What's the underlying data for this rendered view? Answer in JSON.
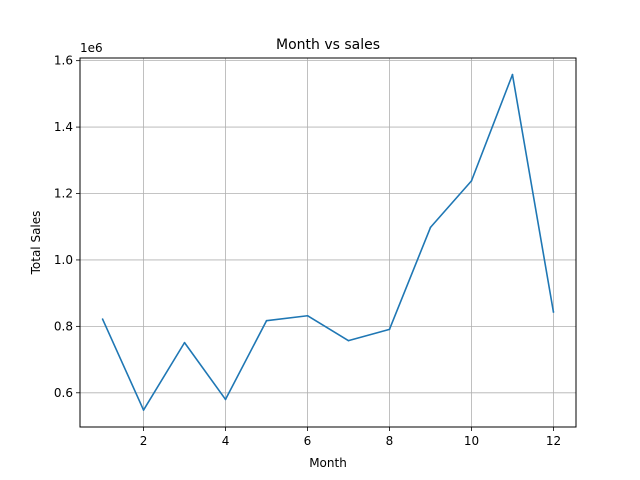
{
  "chart_data": {
    "type": "line",
    "title": "Month vs sales",
    "xlabel": "Month",
    "ylabel": "Total Sales",
    "y_offset_label": "1e6",
    "xlim": [
      0.45,
      12.55
    ],
    "ylim": [
      0.497,
      1.608
    ],
    "grid": true,
    "x_ticks": [
      {
        "value": 2,
        "label": "2"
      },
      {
        "value": 4,
        "label": "4"
      },
      {
        "value": 6,
        "label": "6"
      },
      {
        "value": 8,
        "label": "8"
      },
      {
        "value": 10,
        "label": "10"
      },
      {
        "value": 12,
        "label": "12"
      }
    ],
    "y_ticks": [
      {
        "value": 0.6,
        "label": "0.6"
      },
      {
        "value": 0.8,
        "label": "0.8"
      },
      {
        "value": 1.0,
        "label": "1.0"
      },
      {
        "value": 1.2,
        "label": "1.2"
      },
      {
        "value": 1.4,
        "label": "1.4"
      },
      {
        "value": 1.6,
        "label": "1.6"
      }
    ],
    "series": [
      {
        "color": "#1f77b4",
        "x": [
          1,
          2,
          3,
          4,
          5,
          6,
          7,
          8,
          9,
          10,
          11,
          12
        ],
        "y": [
          0.822,
          0.548,
          0.751,
          0.58,
          0.817,
          0.832,
          0.757,
          0.791,
          1.098,
          1.238,
          1.558,
          0.843
        ]
      }
    ]
  }
}
